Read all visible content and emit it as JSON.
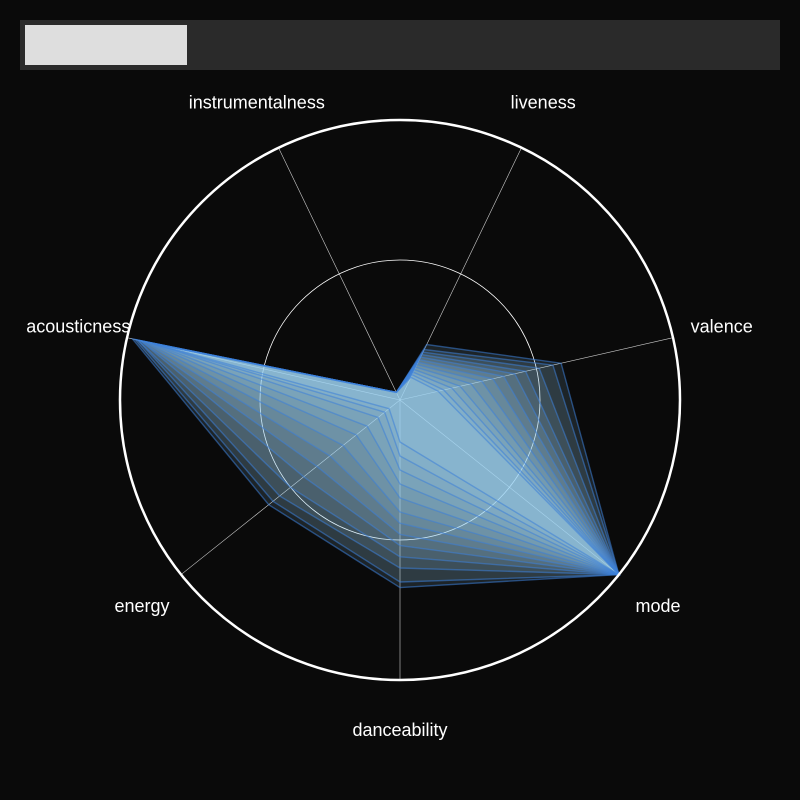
{
  "toolbar": {
    "field_value": ""
  },
  "chart_data": {
    "type": "radar",
    "title": "",
    "axes": [
      "danceability",
      "mode",
      "valence",
      "liveness",
      "instrumentalness",
      "acousticness",
      "energy"
    ],
    "range": [
      0,
      1
    ],
    "gridlines": [
      0.5,
      1.0
    ],
    "series_color": "#3d7fd9",
    "fill_color": "#a6dcf5",
    "series": [
      {
        "values": [
          0.67,
          1.0,
          0.59,
          0.22,
          0.03,
          0.98,
          0.6
        ]
      },
      {
        "values": [
          0.65,
          1.0,
          0.56,
          0.2,
          0.03,
          0.97,
          0.58
        ]
      },
      {
        "values": [
          0.6,
          1.0,
          0.51,
          0.19,
          0.03,
          0.96,
          0.55
        ]
      },
      {
        "values": [
          0.56,
          1.0,
          0.46,
          0.18,
          0.03,
          0.96,
          0.5
        ]
      },
      {
        "values": [
          0.52,
          1.0,
          0.42,
          0.17,
          0.03,
          0.95,
          0.44
        ]
      },
      {
        "values": [
          0.48,
          1.0,
          0.38,
          0.16,
          0.03,
          0.95,
          0.38
        ]
      },
      {
        "values": [
          0.44,
          1.0,
          0.34,
          0.15,
          0.03,
          0.94,
          0.32
        ]
      },
      {
        "values": [
          0.4,
          1.0,
          0.3,
          0.14,
          0.03,
          0.93,
          0.26
        ]
      },
      {
        "values": [
          0.35,
          1.0,
          0.26,
          0.13,
          0.03,
          0.92,
          0.2
        ]
      },
      {
        "values": [
          0.3,
          1.0,
          0.22,
          0.12,
          0.03,
          0.91,
          0.15
        ]
      },
      {
        "values": [
          0.25,
          1.0,
          0.19,
          0.11,
          0.03,
          0.9,
          0.1
        ]
      },
      {
        "values": [
          0.2,
          1.0,
          0.16,
          0.1,
          0.03,
          0.9,
          0.07
        ]
      },
      {
        "values": [
          0.15,
          1.0,
          0.14,
          0.09,
          0.03,
          0.89,
          0.05
        ]
      }
    ]
  }
}
